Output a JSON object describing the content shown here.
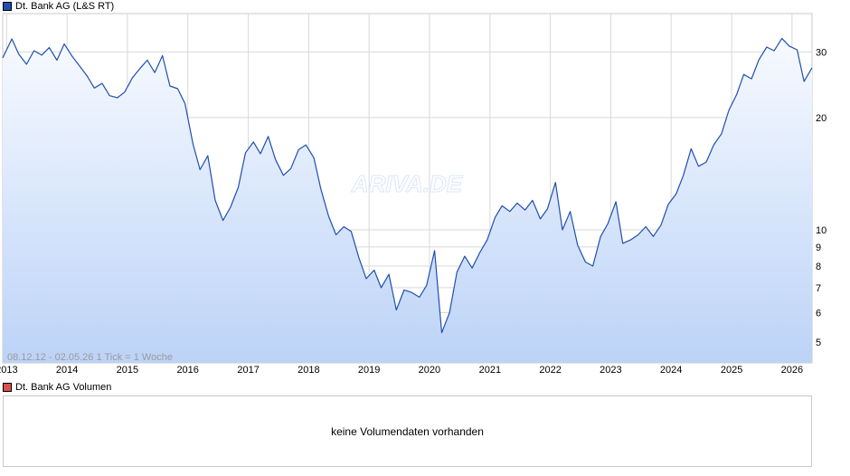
{
  "legend": {
    "price_label": "Dt. Bank AG (L&S RT)",
    "price_color": "#1f4fb0",
    "volume_label": "Dt. Bank AG Volumen",
    "volume_color": "#d9534f"
  },
  "watermark": "ARIVA.DE",
  "info_text": "08.12.12 - 02.05.26   1 Tick = 1 Woche",
  "volume_message": "keine Volumendaten vorhanden",
  "chart_data": {
    "type": "line",
    "title": "Dt. Bank AG (L&S RT)",
    "x_range": [
      "2012-12-08",
      "2026-05-02"
    ],
    "x_ticks": [
      "2013",
      "2014",
      "2015",
      "2016",
      "2017",
      "2018",
      "2019",
      "2020",
      "2021",
      "2022",
      "2023",
      "2024",
      "2025",
      "2026"
    ],
    "y_scale": "log",
    "y_range": [
      4.4,
      38
    ],
    "y_ticks": [
      5,
      6,
      7,
      8,
      9,
      10,
      20,
      30
    ],
    "grid": true,
    "line_color": "#1f4fb0",
    "area_fill": true,
    "series": [
      {
        "name": "Dt. Bank AG (L&S RT)",
        "x": [
          "2012-12-08",
          "2013-02-01",
          "2013-03-15",
          "2013-05-01",
          "2013-06-15",
          "2013-08-01",
          "2013-09-15",
          "2013-11-01",
          "2013-12-15",
          "2014-02-01",
          "2014-03-15",
          "2014-05-01",
          "2014-06-15",
          "2014-08-01",
          "2014-09-15",
          "2014-11-01",
          "2014-12-15",
          "2015-02-01",
          "2015-03-15",
          "2015-05-01",
          "2015-06-15",
          "2015-08-01",
          "2015-09-15",
          "2015-11-01",
          "2015-12-15",
          "2016-02-01",
          "2016-03-15",
          "2016-05-01",
          "2016-06-15",
          "2016-08-01",
          "2016-09-15",
          "2016-11-01",
          "2016-12-15",
          "2017-02-01",
          "2017-03-15",
          "2017-05-01",
          "2017-06-15",
          "2017-08-01",
          "2017-09-15",
          "2017-11-01",
          "2017-12-15",
          "2018-02-01",
          "2018-03-15",
          "2018-05-01",
          "2018-06-15",
          "2018-08-01",
          "2018-09-15",
          "2018-11-01",
          "2018-12-15",
          "2019-02-01",
          "2019-03-15",
          "2019-05-01",
          "2019-06-15",
          "2019-08-01",
          "2019-09-15",
          "2019-11-01",
          "2019-12-15",
          "2020-02-01",
          "2020-03-15",
          "2020-05-01",
          "2020-06-15",
          "2020-08-01",
          "2020-09-15",
          "2020-11-01",
          "2020-12-15",
          "2021-02-01",
          "2021-03-15",
          "2021-05-01",
          "2021-06-15",
          "2021-08-01",
          "2021-09-15",
          "2021-11-01",
          "2021-12-15",
          "2022-02-01",
          "2022-03-15",
          "2022-05-01",
          "2022-06-15",
          "2022-08-01",
          "2022-09-15",
          "2022-11-01",
          "2022-12-15",
          "2023-02-01",
          "2023-03-15",
          "2023-05-01",
          "2023-06-15",
          "2023-08-01",
          "2023-09-15",
          "2023-11-01",
          "2023-12-15",
          "2024-02-01",
          "2024-03-15",
          "2024-05-01",
          "2024-06-15",
          "2024-08-01",
          "2024-09-15",
          "2024-11-01",
          "2024-12-15",
          "2025-02-01",
          "2025-03-15",
          "2025-05-01",
          "2025-06-15",
          "2025-08-01",
          "2025-09-15",
          "2025-11-01",
          "2025-12-15",
          "2026-02-01",
          "2026-03-15",
          "2026-05-02"
        ],
        "values": [
          28.9,
          32.5,
          29.6,
          27.8,
          30.2,
          29.4,
          30.8,
          28.5,
          31.5,
          29.2,
          27.6,
          25.9,
          24.0,
          24.7,
          22.9,
          22.6,
          23.4,
          25.6,
          27.0,
          28.5,
          26.4,
          29.3,
          24.3,
          23.9,
          21.8,
          17.0,
          14.5,
          15.8,
          12.0,
          10.6,
          11.5,
          13.0,
          16.1,
          17.2,
          16.0,
          17.8,
          15.4,
          14.0,
          14.6,
          16.4,
          16.9,
          15.6,
          12.9,
          10.9,
          9.7,
          10.2,
          9.9,
          8.4,
          7.4,
          7.8,
          7.0,
          7.6,
          6.1,
          6.9,
          6.8,
          6.6,
          7.1,
          8.8,
          5.3,
          6.0,
          7.7,
          8.5,
          7.9,
          8.7,
          9.4,
          10.8,
          11.6,
          11.2,
          11.8,
          11.3,
          12.0,
          10.7,
          11.4,
          13.4,
          10.0,
          11.2,
          9.1,
          8.2,
          8.0,
          9.6,
          10.4,
          11.9,
          9.2,
          9.4,
          9.7,
          10.2,
          9.6,
          10.3,
          11.7,
          12.5,
          14.0,
          16.5,
          14.8,
          15.2,
          16.9,
          18.1,
          20.9,
          23.1,
          26.1,
          25.4,
          28.6,
          30.9,
          30.2,
          32.6,
          31.1,
          30.4,
          25.0,
          27.2
        ]
      }
    ]
  }
}
